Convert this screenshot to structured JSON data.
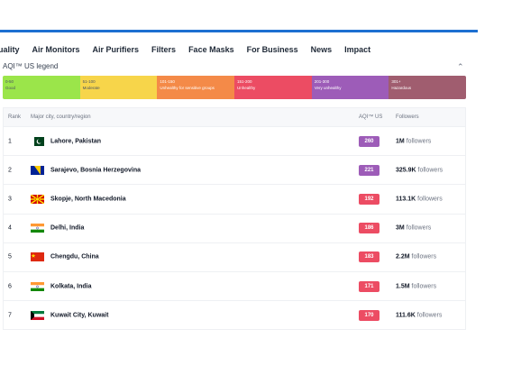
{
  "nav": {
    "items": [
      "uality",
      "Air Monitors",
      "Air Purifiers",
      "Filters",
      "Face Masks",
      "For Business",
      "News",
      "Impact"
    ]
  },
  "legend": {
    "title": "AQI™ US legend",
    "collapse_icon": "chevron-up-icon",
    "segments": [
      {
        "range": "0-50",
        "label": "Good",
        "color": "#9be54a"
      },
      {
        "range": "51-100",
        "label": "Moderate",
        "color": "#f7d54a"
      },
      {
        "range": "101-150",
        "label": "Unhealthy for sensitive groups",
        "color": "#f48a48"
      },
      {
        "range": "151-200",
        "label": "Unhealthy",
        "color": "#ec4c63"
      },
      {
        "range": "201-300",
        "label": "Very unhealthy",
        "color": "#9d5cb8"
      },
      {
        "range": "301+",
        "label": "Hazardous",
        "color": "#a05d6f"
      }
    ]
  },
  "table": {
    "headers": {
      "rank": "Rank",
      "city": "Major city, country/region",
      "aqi": "AQI™ US",
      "followers": "Followers"
    },
    "rows": [
      {
        "rank": "1",
        "flag": "pakistan-flag-icon",
        "city": "Lahore, Pakistan",
        "aqi": "260",
        "aqi_color": "#9d5cb8",
        "followers": "1M",
        "followers_label": "followers"
      },
      {
        "rank": "2",
        "flag": "bosnia-flag-icon",
        "city": "Sarajevo, Bosnia Herzegovina",
        "aqi": "221",
        "aqi_color": "#9d5cb8",
        "followers": "325.9K",
        "followers_label": "followers"
      },
      {
        "rank": "3",
        "flag": "north-macedonia-flag-icon",
        "city": "Skopje, North Macedonia",
        "aqi": "192",
        "aqi_color": "#ec4c63",
        "followers": "113.1K",
        "followers_label": "followers"
      },
      {
        "rank": "4",
        "flag": "india-flag-icon",
        "city": "Delhi, India",
        "aqi": "186",
        "aqi_color": "#ec4c63",
        "followers": "3M",
        "followers_label": "followers"
      },
      {
        "rank": "5",
        "flag": "china-flag-icon",
        "city": "Chengdu, China",
        "aqi": "183",
        "aqi_color": "#ec4c63",
        "followers": "2.2M",
        "followers_label": "followers"
      },
      {
        "rank": "6",
        "flag": "india-flag-icon",
        "city": "Kolkata, India",
        "aqi": "171",
        "aqi_color": "#ec4c63",
        "followers": "1.5M",
        "followers_label": "followers"
      },
      {
        "rank": "7",
        "flag": "kuwait-flag-icon",
        "city": "Kuwait City, Kuwait",
        "aqi": "170",
        "aqi_color": "#ec4c63",
        "followers": "111.6K",
        "followers_label": "followers"
      }
    ]
  }
}
